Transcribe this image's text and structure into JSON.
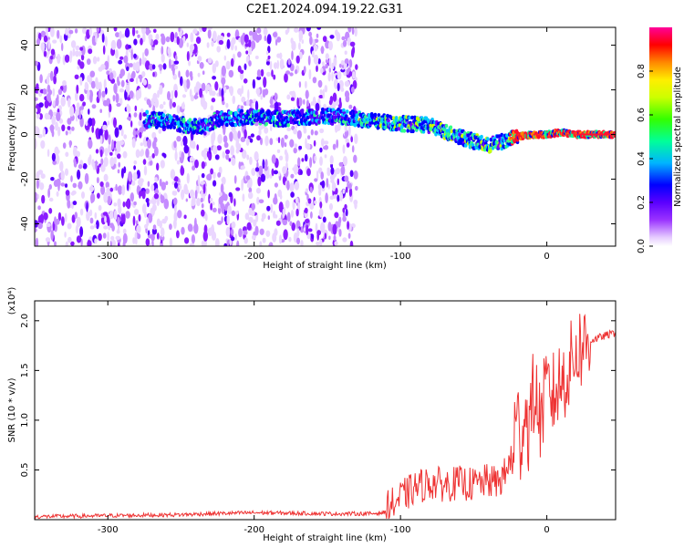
{
  "title": "C2E1.2024.094.19.22.G31",
  "chart_data": [
    {
      "type": "heatmap",
      "xlabel": "Height of straight line (km)",
      "ylabel": "Frequency (Hz)",
      "xlim": [
        -350,
        47
      ],
      "ylim": [
        -50,
        48
      ],
      "xticks": [
        -300,
        -200,
        -100,
        0
      ],
      "yticks": [
        -40,
        -20,
        0,
        20,
        40
      ],
      "x_tick_labels": [
        "-300",
        "-200",
        "-100",
        "0"
      ],
      "y_tick_labels": [
        "-40",
        "-20",
        "0",
        "20",
        "40"
      ],
      "colorbar": {
        "label": "Normalized spectral amplitude",
        "range": [
          0,
          1
        ],
        "ticks": [
          0.0,
          0.2,
          0.4,
          0.6,
          0.8
        ],
        "tick_labels": [
          "0.0",
          "0.2",
          "0.4",
          "0.6",
          "0.8"
        ],
        "colors": [
          "#ffffff",
          "#c77dff",
          "#7a00ff",
          "#0000ff",
          "#00d0ff",
          "#00ff66",
          "#a6ff00",
          "#ffff00",
          "#ff8000",
          "#ff0000",
          "#ff00aa"
        ]
      },
      "ridge_frequency": {
        "x": [
          -275,
          -260,
          -245,
          -235,
          -225,
          -200,
          -180,
          -160,
          -140,
          -120,
          -100,
          -80,
          -60,
          -50,
          -40,
          -30,
          -20,
          -10,
          0,
          10,
          20,
          47
        ],
        "y": [
          7,
          6,
          4,
          3,
          7,
          8,
          7,
          8,
          8,
          6,
          5,
          4,
          -1,
          -3,
          -5,
          -3,
          -1,
          0,
          0,
          1,
          0,
          0
        ]
      },
      "noise_extent_x": [
        -350,
        -130
      ]
    },
    {
      "type": "line",
      "xlabel": "Height of straight line (km)",
      "ylabel": "SNR (10 * v/v)",
      "y_scale_label": "(x10⁴)",
      "xlim": [
        -350,
        47
      ],
      "ylim": [
        0,
        2.2
      ],
      "xticks": [
        -300,
        -200,
        -100,
        0
      ],
      "yticks": [
        0.5,
        1.0,
        1.5,
        2.0
      ],
      "x_tick_labels": [
        "-300",
        "-200",
        "-100",
        "0"
      ],
      "y_tick_labels": [
        "0.5",
        "1.0",
        "1.5",
        "2.0"
      ],
      "series": [
        {
          "color": "#ee3333",
          "x": [
            -350,
            -300,
            -250,
            -230,
            -200,
            -150,
            -120,
            -105,
            -100,
            -90,
            -80,
            -70,
            -60,
            -50,
            -40,
            -35,
            -30,
            -25,
            -22,
            -20,
            -18,
            -15,
            -12,
            -10,
            -8,
            -5,
            0,
            5,
            10,
            15,
            20,
            25,
            30,
            40,
            47
          ],
          "y": [
            0.03,
            0.04,
            0.05,
            0.06,
            0.07,
            0.06,
            0.06,
            0.08,
            0.15,
            0.25,
            0.3,
            0.28,
            0.3,
            0.28,
            0.32,
            0.3,
            0.35,
            0.5,
            0.9,
            1.0,
            0.8,
            1.1,
            0.9,
            1.2,
            1.3,
            1.0,
            1.3,
            1.25,
            1.4,
            1.5,
            1.7,
            1.75,
            1.8,
            1.85,
            1.88
          ]
        }
      ]
    }
  ]
}
